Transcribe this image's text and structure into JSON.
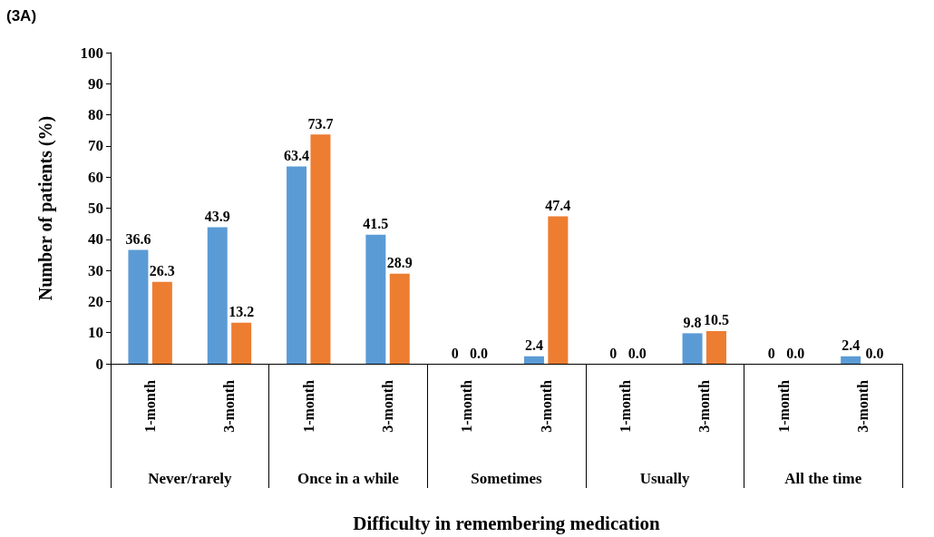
{
  "chart_data": {
    "type": "bar",
    "title": "(3A)",
    "xlabel": "Difficulty in remembering medication",
    "ylabel": "Number of patients (%)",
    "categories": [
      "1-month",
      "3-month",
      "1-month",
      "3-month",
      "1-month",
      "3-month",
      "1-month",
      "3-month",
      "1-month",
      "3-month"
    ],
    "annotations": [
      "Never/rarely",
      "Once in a while",
      "Sometimes",
      "Usually",
      "All the time"
    ],
    "series": [
      {
        "color": "#5b9bd5",
        "values": [
          36.6,
          43.9,
          63.4,
          41.5,
          0,
          2.4,
          0,
          9.8,
          0,
          2.4
        ],
        "value_labels": [
          "36.6",
          "43.9",
          "63.4",
          "41.5",
          "0",
          "2.4",
          "0",
          "9.8",
          "0",
          "2.4"
        ]
      },
      {
        "color": "#ed7d31",
        "values": [
          26.3,
          13.2,
          73.7,
          28.9,
          0,
          47.4,
          0,
          10.5,
          0,
          0
        ],
        "value_labels": [
          "26.3",
          "13.2",
          "73.7",
          "28.9",
          "0.0",
          "47.4",
          "0.0",
          "10.5",
          "0.0",
          "0.0"
        ]
      }
    ],
    "ylim": [
      0,
      100
    ],
    "yticks": [
      0,
      10,
      20,
      30,
      40,
      50,
      60,
      70,
      80,
      90,
      100
    ],
    "grid": false
  }
}
